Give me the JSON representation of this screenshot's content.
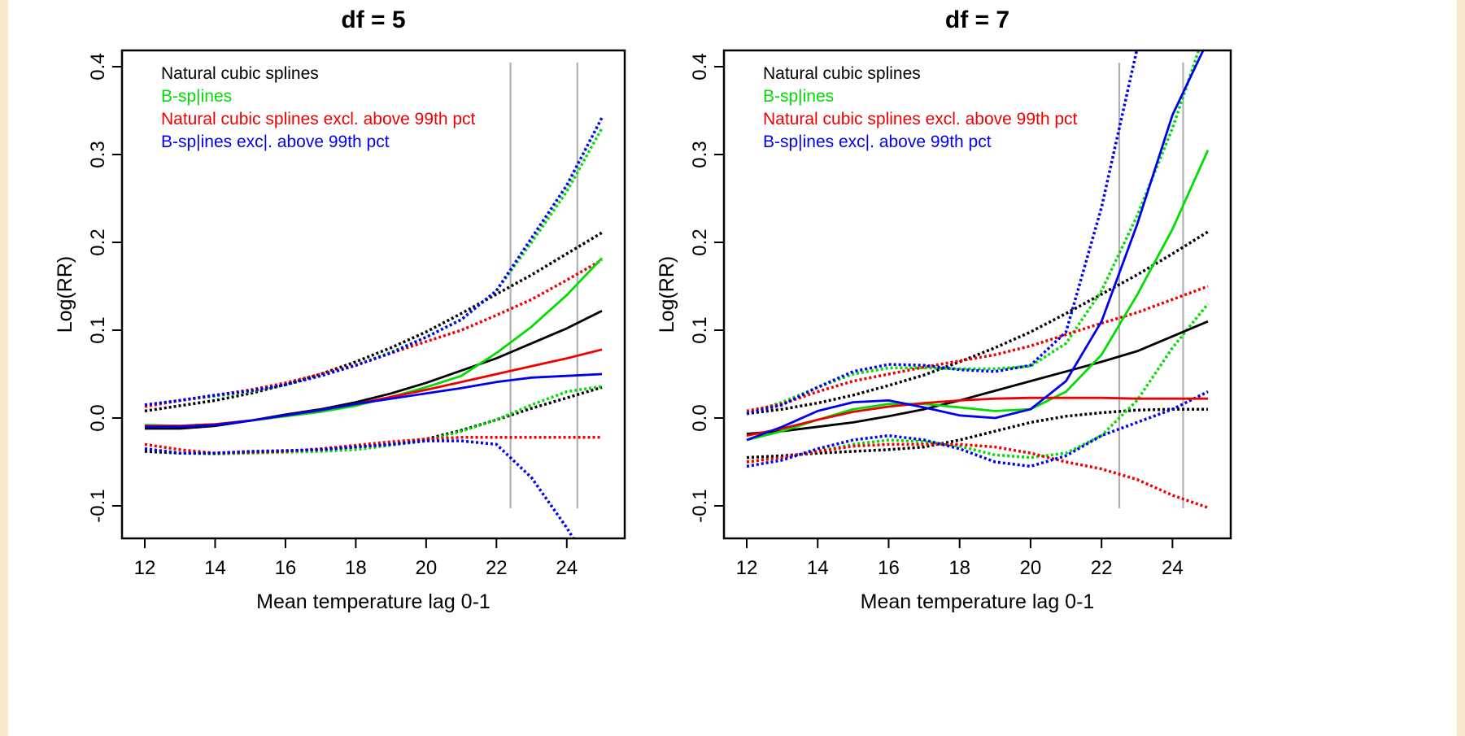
{
  "chart_data": [
    {
      "type": "line",
      "title": "df = 5",
      "xlabel": "Mean temperature lag 0-1",
      "ylabel": "Log(RR)",
      "xlim": [
        12,
        25
      ],
      "ylim": [
        -0.1,
        0.4
      ],
      "xticks": [
        12,
        14,
        16,
        18,
        20,
        22,
        24
      ],
      "xtick_labels": [
        "12",
        "14",
        "16",
        "18",
        "20",
        "22",
        "24"
      ],
      "yticks": [
        -0.1,
        0.0,
        0.1,
        0.2,
        0.3,
        0.4
      ],
      "ytick_labels": [
        "-0.1",
        "0.0",
        "0.1",
        "0.2",
        "0.3",
        "0.4"
      ],
      "reference_lines_x": [
        22.4,
        24.3
      ],
      "legend": [
        {
          "label": "Natural cubic splines",
          "color": "#000000"
        },
        {
          "label": "B-sp|ines",
          "color": "#00dd00"
        },
        {
          "label": "Natural cubic splines excl. above 99th pct",
          "color": "#ee0000"
        },
        {
          "label": "B-sp|ines exc|. above 99th pct",
          "color": "#0000ee"
        }
      ],
      "x": [
        12,
        13,
        14,
        15,
        16,
        17,
        18,
        19,
        20,
        21,
        22,
        23,
        24,
        25
      ],
      "series": [
        {
          "name": "Natural cubic splines",
          "color": "#000000",
          "estimate": [
            -0.012,
            -0.012,
            -0.009,
            -0.003,
            0.004,
            0.01,
            0.018,
            0.028,
            0.04,
            0.054,
            0.068,
            0.085,
            0.102,
            0.122
          ],
          "lower": [
            -0.038,
            -0.04,
            -0.04,
            -0.039,
            -0.038,
            -0.036,
            -0.033,
            -0.03,
            -0.024,
            -0.014,
            -0.002,
            0.011,
            0.023,
            0.035
          ],
          "upper": [
            0.008,
            0.014,
            0.02,
            0.028,
            0.038,
            0.05,
            0.064,
            0.08,
            0.098,
            0.119,
            0.141,
            0.163,
            0.187,
            0.211
          ]
        },
        {
          "name": "B-sp|ines",
          "color": "#00dd00",
          "estimate": [
            -0.008,
            -0.009,
            -0.007,
            -0.003,
            0.002,
            0.007,
            0.014,
            0.024,
            0.035,
            0.048,
            0.074,
            0.104,
            0.14,
            0.182
          ],
          "lower": [
            -0.035,
            -0.04,
            -0.041,
            -0.04,
            -0.039,
            -0.038,
            -0.036,
            -0.031,
            -0.026,
            -0.015,
            -0.002,
            0.015,
            0.03,
            0.036
          ],
          "upper": [
            0.015,
            0.02,
            0.025,
            0.03,
            0.038,
            0.048,
            0.06,
            0.075,
            0.092,
            0.112,
            0.145,
            0.2,
            0.258,
            0.33
          ]
        },
        {
          "name": "Natural cubic splines excl. above 99th pct",
          "color": "#ee0000",
          "estimate": [
            -0.009,
            -0.009,
            -0.007,
            -0.003,
            0.003,
            0.009,
            0.016,
            0.024,
            0.032,
            0.041,
            0.05,
            0.059,
            0.068,
            0.078
          ],
          "lower": [
            -0.03,
            -0.036,
            -0.04,
            -0.039,
            -0.038,
            -0.035,
            -0.031,
            -0.027,
            -0.024,
            -0.022,
            -0.022,
            -0.022,
            -0.022,
            -0.022
          ],
          "upper": [
            0.013,
            0.02,
            0.026,
            0.032,
            0.04,
            0.05,
            0.06,
            0.074,
            0.087,
            0.1,
            0.117,
            0.135,
            0.157,
            0.18
          ]
        },
        {
          "name": "B-sp|ines exc|. above 99th pct",
          "color": "#0000ee",
          "estimate": [
            -0.01,
            -0.01,
            -0.008,
            -0.003,
            0.003,
            0.009,
            0.016,
            0.022,
            0.028,
            0.034,
            0.041,
            0.046,
            0.048,
            0.05
          ],
          "lower": [
            -0.035,
            -0.04,
            -0.04,
            -0.038,
            -0.037,
            -0.036,
            -0.033,
            -0.03,
            -0.026,
            -0.026,
            -0.03,
            -0.068,
            -0.125,
            -0.19
          ],
          "upper": [
            0.015,
            0.02,
            0.026,
            0.031,
            0.038,
            0.048,
            0.06,
            0.074,
            0.092,
            0.112,
            0.145,
            0.205,
            0.265,
            0.342
          ]
        }
      ]
    },
    {
      "type": "line",
      "title": "df = 7",
      "xlabel": "Mean temperature lag 0-1",
      "ylabel": "Log(RR)",
      "xlim": [
        12,
        25
      ],
      "ylim": [
        -0.1,
        0.4
      ],
      "xticks": [
        12,
        14,
        16,
        18,
        20,
        22,
        24
      ],
      "xtick_labels": [
        "12",
        "14",
        "16",
        "18",
        "20",
        "22",
        "24"
      ],
      "yticks": [
        -0.1,
        0.0,
        0.1,
        0.2,
        0.3,
        0.4
      ],
      "ytick_labels": [
        "-0.1",
        "0.0",
        "0.1",
        "0.2",
        "0.3",
        "0.4"
      ],
      "reference_lines_x": [
        22.5,
        24.3
      ],
      "legend": [
        {
          "label": "Natural cubic splines",
          "color": "#000000"
        },
        {
          "label": "B-sp|ines",
          "color": "#00dd00"
        },
        {
          "label": "Natural cubic splines excl. above 99th pct",
          "color": "#ee0000"
        },
        {
          "label": "B-sp|ines exc|. above 99th pct",
          "color": "#0000ee"
        }
      ],
      "x": [
        12,
        13,
        14,
        15,
        16,
        17,
        18,
        19,
        20,
        21,
        22,
        23,
        24,
        25
      ],
      "series": [
        {
          "name": "Natural cubic splines",
          "color": "#000000",
          "estimate": [
            -0.018,
            -0.015,
            -0.01,
            -0.005,
            0.002,
            0.01,
            0.02,
            0.031,
            0.042,
            0.053,
            0.064,
            0.076,
            0.093,
            0.11
          ],
          "lower": [
            -0.045,
            -0.043,
            -0.04,
            -0.038,
            -0.036,
            -0.033,
            -0.025,
            -0.015,
            -0.005,
            0.002,
            0.006,
            0.009,
            0.01,
            0.01
          ],
          "upper": [
            0.005,
            0.01,
            0.017,
            0.026,
            0.037,
            0.049,
            0.064,
            0.08,
            0.098,
            0.119,
            0.141,
            0.163,
            0.187,
            0.212
          ]
        },
        {
          "name": "B-sp|ines",
          "color": "#00dd00",
          "estimate": [
            -0.025,
            -0.015,
            -0.002,
            0.01,
            0.016,
            0.016,
            0.012,
            0.008,
            0.01,
            0.03,
            0.072,
            0.14,
            0.215,
            0.305
          ],
          "lower": [
            -0.05,
            -0.045,
            -0.038,
            -0.03,
            -0.025,
            -0.027,
            -0.032,
            -0.042,
            -0.045,
            -0.04,
            -0.02,
            0.02,
            0.08,
            0.13
          ],
          "upper": [
            0.005,
            0.018,
            0.035,
            0.05,
            0.057,
            0.057,
            0.056,
            0.056,
            0.059,
            0.085,
            0.145,
            0.23,
            0.33,
            0.45
          ]
        },
        {
          "name": "Natural cubic splines excl. above 99th pct",
          "color": "#ee0000",
          "estimate": [
            -0.02,
            -0.012,
            -0.002,
            0.007,
            0.013,
            0.017,
            0.02,
            0.022,
            0.023,
            0.023,
            0.023,
            0.022,
            0.022,
            0.022
          ],
          "lower": [
            -0.05,
            -0.045,
            -0.038,
            -0.032,
            -0.03,
            -0.03,
            -0.03,
            -0.033,
            -0.04,
            -0.05,
            -0.058,
            -0.07,
            -0.088,
            -0.102
          ],
          "upper": [
            0.008,
            0.016,
            0.03,
            0.042,
            0.05,
            0.058,
            0.065,
            0.072,
            0.082,
            0.095,
            0.108,
            0.12,
            0.135,
            0.15
          ]
        },
        {
          "name": "B-sp|ines exc|. above 99th pct",
          "color": "#0000ee",
          "estimate": [
            -0.025,
            -0.01,
            0.008,
            0.018,
            0.02,
            0.012,
            0.003,
            0.0,
            0.01,
            0.042,
            0.11,
            0.22,
            0.345,
            0.43
          ],
          "lower": [
            -0.055,
            -0.048,
            -0.035,
            -0.025,
            -0.02,
            -0.025,
            -0.035,
            -0.05,
            -0.055,
            -0.043,
            -0.02,
            -0.005,
            0.01,
            0.03
          ],
          "upper": [
            0.005,
            0.015,
            0.035,
            0.053,
            0.061,
            0.06,
            0.055,
            0.053,
            0.06,
            0.098,
            0.24,
            0.42,
            0.42,
            0.42
          ]
        }
      ]
    }
  ]
}
